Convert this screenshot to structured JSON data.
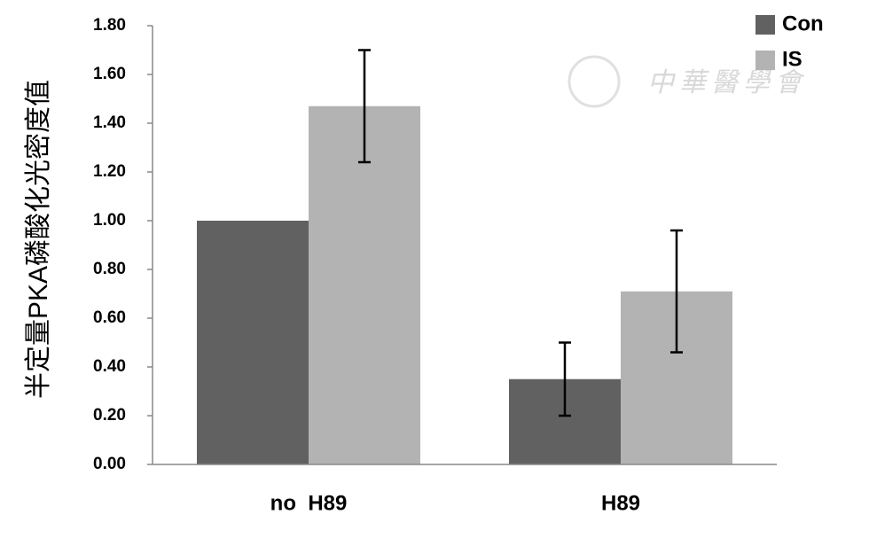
{
  "chart_data": {
    "type": "bar",
    "y_label": "半定量PKA磷酸化光密度值",
    "watermark": "中華醫學會",
    "categories": [
      "no  H89",
      "H89"
    ],
    "series": [
      {
        "name": "Con",
        "color": "#616161",
        "values": [
          1.0,
          0.35
        ],
        "errors": [
          null,
          0.15
        ]
      },
      {
        "name": "IS",
        "color": "#b3b3b3",
        "values": [
          1.47,
          0.71
        ],
        "errors": [
          0.23,
          0.25
        ]
      }
    ],
    "ylim": [
      0,
      1.8
    ],
    "yticks": [
      {
        "value": 0,
        "label": "0.00"
      },
      {
        "value": 0.2,
        "label": "0.20"
      },
      {
        "value": 0.4,
        "label": "0.40"
      },
      {
        "value": 0.6,
        "label": "0.60"
      },
      {
        "value": 0.8,
        "label": "0.80"
      },
      {
        "value": 1.0,
        "label": "1.00"
      },
      {
        "value": 1.2,
        "label": "1.20"
      },
      {
        "value": 1.4,
        "label": "1.40"
      },
      {
        "value": 1.6,
        "label": "1.60"
      },
      {
        "value": 1.8,
        "label": "1.80"
      }
    ],
    "legend": "top-right",
    "grid": false
  }
}
